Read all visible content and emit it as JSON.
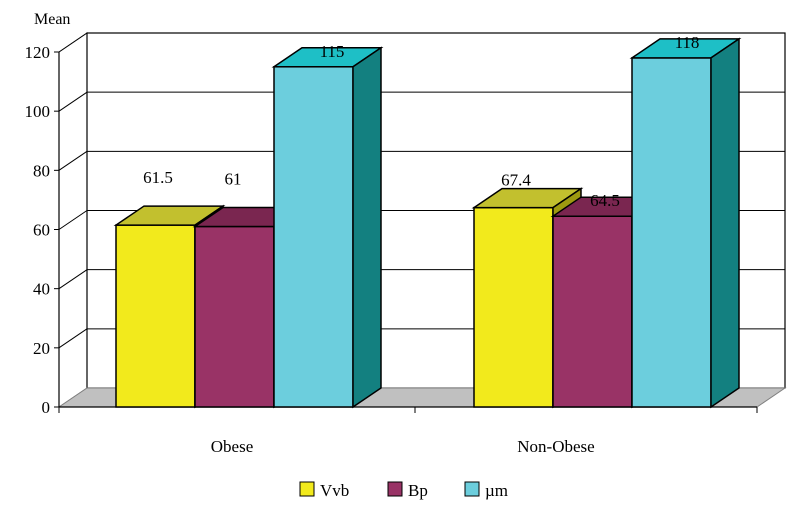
{
  "chart_data": {
    "type": "bar",
    "style": "3d-clustered",
    "ylabel": "Mean",
    "xlabel": "",
    "ylim": [
      0,
      120
    ],
    "yticks": [
      0,
      20,
      40,
      60,
      80,
      100,
      120
    ],
    "grid": true,
    "legend_position": "bottom-center",
    "categories": [
      "Obese",
      "Non-Obese"
    ],
    "series": [
      {
        "name": "Vvb",
        "values": [
          61.5,
          67.4
        ],
        "labels": [
          "61.5",
          "67.4"
        ],
        "color": "#F2EA1C",
        "top_color": "#C2C02E",
        "side_color": "#9E9A10"
      },
      {
        "name": "Bp",
        "values": [
          61,
          64.5
        ],
        "labels": [
          "61",
          "64.5"
        ],
        "color": "#993366",
        "top_color": "#7A2650",
        "side_color": "#6A1E45"
      },
      {
        "name": "µm",
        "values": [
          115,
          118
        ],
        "labels": [
          "115",
          "118"
        ],
        "color": "#6CCEDD",
        "top_color": "#1EBFC6",
        "side_color": "#138080"
      }
    ]
  }
}
